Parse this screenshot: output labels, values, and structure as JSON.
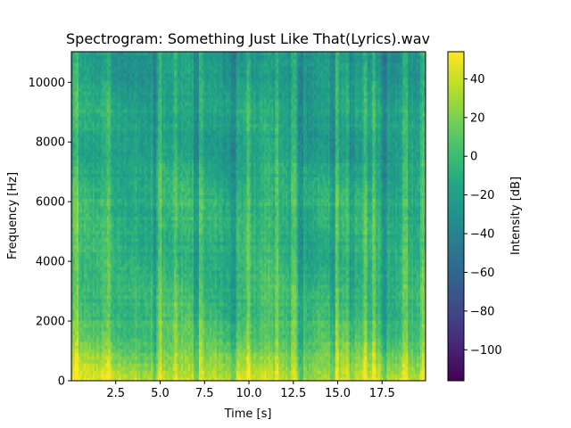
{
  "chart_data": {
    "type": "heatmap",
    "title": "Spectrogram: Something Just Like That(Lyrics).wav",
    "xlabel": "Time [s]",
    "ylabel": "Frequency [Hz]",
    "colorbar_label": "Intensity [dB]",
    "xlim": [
      0,
      19.95
    ],
    "ylim": [
      0,
      11025
    ],
    "clim": [
      -116,
      54
    ],
    "colormap": "viridis",
    "x_ticks": [
      2.5,
      5.0,
      7.5,
      10.0,
      12.5,
      15.0,
      17.5
    ],
    "x_tick_labels": [
      "2.5",
      "5.0",
      "7.5",
      "10.0",
      "12.5",
      "15.0",
      "17.5"
    ],
    "y_ticks": [
      0,
      2000,
      4000,
      6000,
      8000,
      10000
    ],
    "y_tick_labels": [
      "0",
      "2000",
      "4000",
      "6000",
      "8000",
      "10000"
    ],
    "colorbar_ticks": [
      40,
      20,
      0,
      -20,
      -40,
      -60,
      -80,
      -100
    ],
    "colorbar_tick_labels": [
      "40",
      "20",
      "0",
      "−20",
      "−40",
      "−60",
      "−80",
      "−100"
    ],
    "intensity_profile": {
      "frequencies_hz": [
        0,
        200,
        500,
        1000,
        2000,
        3000,
        4000,
        5000,
        6000,
        7000,
        8000,
        9000,
        10000,
        11025
      ],
      "typical_db": [
        40,
        35,
        28,
        15,
        2,
        -4,
        -8,
        -8,
        -5,
        -14,
        -20,
        -15,
        -22,
        -25
      ]
    },
    "bright_time_bands_s": [
      0.25,
      2.1,
      4.95,
      5.9,
      7.35,
      10.0,
      11.6,
      12.5,
      14.95,
      16.55,
      17.05,
      18.8,
      19.8
    ],
    "dark_time_bands_s": [
      4.75,
      7.05,
      9.1,
      12.95,
      14.75,
      15.85,
      17.65
    ]
  }
}
